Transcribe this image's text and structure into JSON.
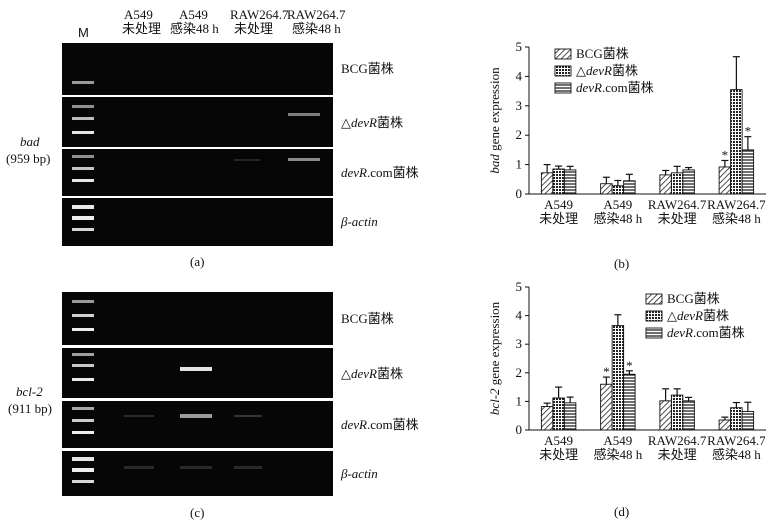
{
  "panel_a": {
    "label": "(a)",
    "marker_label": "M",
    "lanes": [
      {
        "line1": "A549",
        "line2": "未处理"
      },
      {
        "line1": "A549",
        "line2": "感染48 h"
      },
      {
        "line1": "RAW264.7",
        "line2": "未处理"
      },
      {
        "line1": "RAW264.7",
        "line2": "感染48 h"
      }
    ],
    "gene_name": "bad",
    "gene_size": "(959 bp)",
    "rows": [
      {
        "pre": "",
        "ital": "",
        "post": "BCG菌株"
      },
      {
        "pre": "△",
        "ital": "devR",
        "post": "菌株"
      },
      {
        "pre": "",
        "ital": "devR",
        "post": ".com菌株"
      },
      {
        "pre": "",
        "ital": "β-actin",
        "post": ""
      }
    ]
  },
  "panel_c": {
    "label": "(c)",
    "gene_name": "bcl-2",
    "gene_size": "(911 bp)",
    "rows": [
      {
        "pre": "",
        "ital": "",
        "post": "BCG菌株"
      },
      {
        "pre": "△",
        "ital": "devR",
        "post": "菌株"
      },
      {
        "pre": "",
        "ital": "devR",
        "post": ".com菌株"
      },
      {
        "pre": "",
        "ital": "β-actin",
        "post": ""
      }
    ]
  },
  "panel_b": {
    "label": "(b)",
    "ylabel_gene": "bad",
    "ylabel_rest": " gene expression"
  },
  "panel_d": {
    "label": "(d)",
    "ylabel_gene": "bcl-2",
    "ylabel_rest": " gene expression"
  },
  "chart_data": [
    {
      "type": "bar",
      "categories": [
        [
          "A549",
          "未处理"
        ],
        [
          "A549",
          "感染48 h"
        ],
        [
          "RAW264.7",
          "未处理"
        ],
        [
          "RAW264.7",
          "感染48 h"
        ]
      ],
      "series": [
        {
          "name": "BCG菌株",
          "values": [
            0.72,
            0.35,
            0.65,
            0.92
          ],
          "errors": [
            0.28,
            0.22,
            0.15,
            0.22
          ],
          "sig": [
            false,
            false,
            false,
            true
          ]
        },
        {
          "name": "△devR菌株",
          "values": [
            0.85,
            0.28,
            0.72,
            3.55
          ],
          "errors": [
            0.1,
            0.18,
            0.22,
            1.12
          ],
          "sig": [
            false,
            false,
            false,
            false
          ]
        },
        {
          "name": "devR.com菌株",
          "values": [
            0.82,
            0.45,
            0.82,
            1.5
          ],
          "errors": [
            0.12,
            0.22,
            0.08,
            0.45
          ],
          "sig": [
            false,
            false,
            false,
            true
          ]
        }
      ],
      "ylim": [
        0,
        5
      ],
      "yticks": [
        0,
        1,
        2,
        3,
        4,
        5
      ],
      "legend": "top-left",
      "grid": false
    },
    {
      "type": "bar",
      "categories": [
        [
          "A549",
          "未处理"
        ],
        [
          "A549",
          "感染48 h"
        ],
        [
          "RAW264.7",
          "未处理"
        ],
        [
          "RAW264.7",
          "感染48 h"
        ]
      ],
      "series": [
        {
          "name": "BCG菌株",
          "values": [
            0.82,
            1.6,
            1.02,
            0.35
          ],
          "errors": [
            0.12,
            0.25,
            0.42,
            0.1
          ],
          "sig": [
            false,
            true,
            false,
            false
          ]
        },
        {
          "name": "△devR菌株",
          "values": [
            1.12,
            3.65,
            1.22,
            0.78
          ],
          "errors": [
            0.38,
            0.38,
            0.22,
            0.18
          ],
          "sig": [
            false,
            false,
            false,
            false
          ]
        },
        {
          "name": "devR.com菌株",
          "values": [
            0.95,
            1.95,
            1.02,
            0.65
          ],
          "errors": [
            0.2,
            0.12,
            0.12,
            0.32
          ],
          "sig": [
            false,
            true,
            false,
            false
          ]
        }
      ],
      "ylim": [
        0,
        5
      ],
      "yticks": [
        0,
        1,
        2,
        3,
        4,
        5
      ],
      "legend": "top-right",
      "grid": false
    }
  ]
}
